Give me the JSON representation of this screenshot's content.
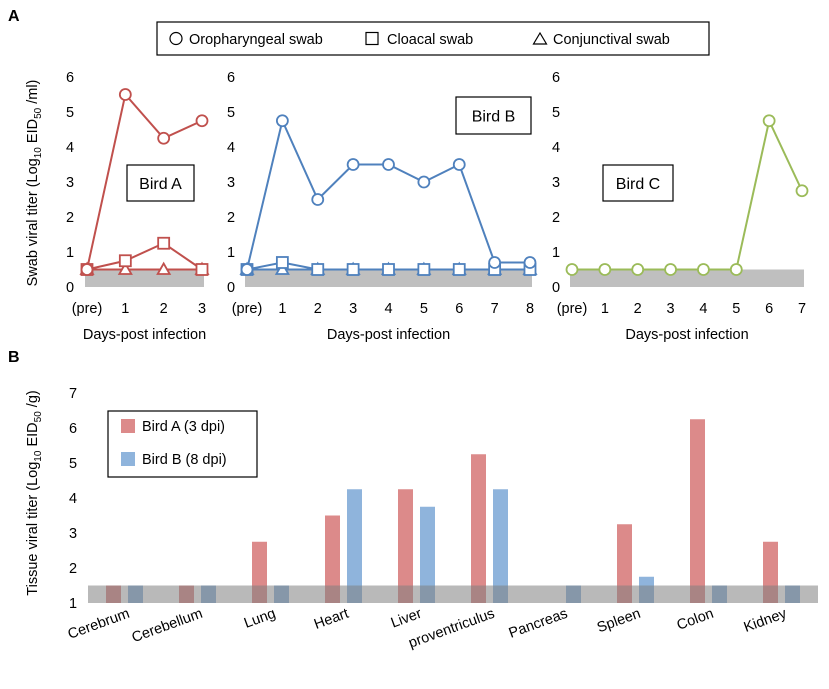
{
  "panel_labels": {
    "a": "A",
    "b": "B"
  },
  "legend_a": [
    {
      "symbol": "circle",
      "label": "Oropharyngeal  swab"
    },
    {
      "symbol": "square",
      "label": "Cloacal swab"
    },
    {
      "symbol": "triangle",
      "label": "Conjunctival  swab"
    }
  ],
  "chart_data": [
    {
      "type": "line",
      "title": "Bird A",
      "xlabel": "Days-post infection",
      "ylabel": "Swab viral titer (Log10 EID50 /ml)",
      "ylabel_parts": {
        "pre": "Swab viral titer (Log",
        "sub1": "10",
        "mid": " EID",
        "sub2": "50",
        "post": " /ml)"
      },
      "color": "#c0504d",
      "x": [
        "(pre)",
        "1",
        "2",
        "3"
      ],
      "yticks": [
        "0",
        "1",
        "2",
        "3",
        "4",
        "5",
        "6"
      ],
      "ylim": [
        0,
        6
      ],
      "detection_limit": 0.5,
      "series": [
        {
          "name": "Oropharyngeal swab",
          "marker": "circle",
          "values": [
            0.5,
            5.5,
            4.25,
            4.75
          ]
        },
        {
          "name": "Cloacal swab",
          "marker": "square",
          "values": [
            0.5,
            0.75,
            1.25,
            0.5
          ]
        },
        {
          "name": "Conjunctival swab",
          "marker": "triangle",
          "values": [
            0.5,
            0.5,
            0.5,
            0.5
          ]
        }
      ]
    },
    {
      "type": "line",
      "title": "Bird B",
      "xlabel": "Days-post infection",
      "color": "#4f81bd",
      "x": [
        "(pre)",
        "1",
        "2",
        "3",
        "4",
        "5",
        "6",
        "7",
        "8"
      ],
      "yticks": [
        "0",
        "1",
        "2",
        "3",
        "4",
        "5",
        "6"
      ],
      "ylim": [
        0,
        6
      ],
      "detection_limit": 0.5,
      "series": [
        {
          "name": "Oropharyngeal swab",
          "marker": "circle",
          "values": [
            0.5,
            4.75,
            2.5,
            3.5,
            3.5,
            3.0,
            3.5,
            0.7,
            0.7
          ]
        },
        {
          "name": "Cloacal swab",
          "marker": "square",
          "values": [
            0.5,
            0.7,
            0.5,
            0.5,
            0.5,
            0.5,
            0.5,
            0.5,
            0.5
          ]
        },
        {
          "name": "Conjunctival swab",
          "marker": "triangle",
          "values": [
            0.5,
            0.5,
            0.5,
            0.5,
            0.5,
            0.5,
            0.5,
            0.5,
            0.5
          ]
        }
      ]
    },
    {
      "type": "line",
      "title": "Bird C",
      "xlabel": "Days-post infection",
      "color": "#9bbb59",
      "x": [
        "(pre)",
        "1",
        "2",
        "3",
        "4",
        "5",
        "6",
        "7"
      ],
      "yticks": [
        "0",
        "1",
        "2",
        "3",
        "4",
        "5",
        "6"
      ],
      "ylim": [
        0,
        6
      ],
      "detection_limit": 0.5,
      "series": [
        {
          "name": "Oropharyngeal swab",
          "marker": "circle",
          "values": [
            0.5,
            0.5,
            0.5,
            0.5,
            0.5,
            0.5,
            4.75,
            2.75
          ]
        }
      ]
    },
    {
      "type": "bar",
      "title": "",
      "ylabel": "Tissue viral titer (Log10 EID50 /g)",
      "ylabel_parts": {
        "pre": "Tissue viral titer (Log",
        "sub1": "10",
        "mid": " EID",
        "sub2": "50",
        "post": " /g)"
      },
      "categories": [
        "Cerebrum",
        "Cerebellum",
        "Lung",
        "Heart",
        "Liver",
        "proventriculus",
        "Pancreas",
        "Spleen",
        "Colon",
        "Kidney"
      ],
      "yticks": [
        "1",
        "2",
        "3",
        "4",
        "5",
        "6",
        "7"
      ],
      "ylim": [
        1,
        7
      ],
      "detection_limit": 1.5,
      "legend": [
        "Bird A (3 dpi)",
        "Bird B (8 dpi)"
      ],
      "series": [
        {
          "name": "Bird A (3 dpi)",
          "color": "#dc8a8a",
          "values": [
            1.5,
            1.5,
            2.75,
            3.5,
            4.25,
            5.25,
            null,
            3.25,
            6.25,
            2.75
          ]
        },
        {
          "name": "Bird B (8 dpi)",
          "color": "#8fb4dc",
          "values": [
            1.5,
            1.5,
            1.5,
            4.25,
            3.75,
            4.25,
            1.5,
            1.75,
            1.5,
            1.5
          ]
        }
      ]
    }
  ]
}
